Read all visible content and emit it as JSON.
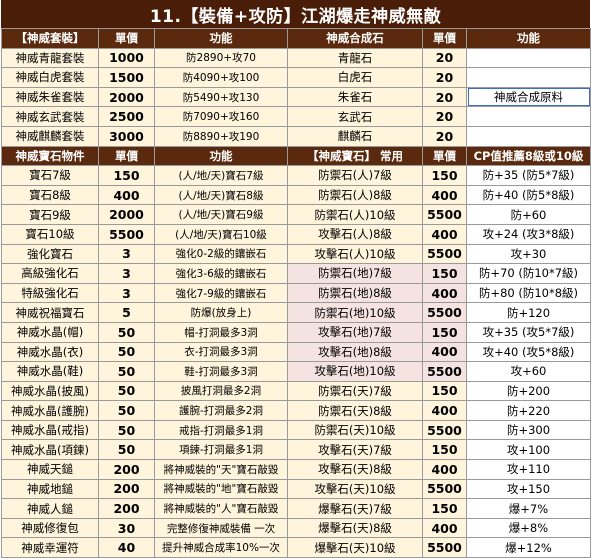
{
  "title": "11.【裝備+攻防】江湖爆走神威無敵",
  "top_header": [
    "【神威套裝】",
    "單價",
    "功能",
    "神威合成石",
    "單價",
    "功能"
  ],
  "top_rows": [
    [
      "神威青龍套裝",
      "1000",
      "防2890+攻70",
      "青龍石",
      "20",
      ""
    ],
    [
      "神威白虎套裝",
      "1500",
      "防4090+攻100",
      "白虎石",
      "20",
      ""
    ],
    [
      "神威朱雀套裝",
      "2000",
      "防5490+攻130",
      "朱雀石",
      "20",
      "神威合成原料"
    ],
    [
      "神威玄武套裝",
      "2500",
      "防7090+攻160",
      "玄武石",
      "20",
      ""
    ],
    [
      "神威麒麟套裝",
      "3000",
      "防8890+攻190",
      "麒麟石",
      "20",
      ""
    ]
  ],
  "mid_header": [
    "神威寶石物件",
    "單價",
    "功能",
    "【神威寶石】 常用",
    "單價",
    "CP值推薦8級或10級"
  ],
  "main_rows": [
    [
      "寶石7級",
      "150",
      "(人/地/天)寶石7級",
      "防禦石(人)7級",
      "150",
      "防+35 (防5*7級)"
    ],
    [
      "寶石8級",
      "400",
      "(人/地/天)寶石8級",
      "防禦石(人)8級",
      "400",
      "防+40 (防5*8級)"
    ],
    [
      "寶石9級",
      "2000",
      "(人/地/天)寶石9級",
      "防禦石(人)10級",
      "5500",
      "防+60"
    ],
    [
      "寶石10級",
      "5500",
      "(人/地/天)寶石10級",
      "攻擊石(人)8級",
      "400",
      "攻+24 (攻3*8級)"
    ],
    [
      "強化寶石",
      "3",
      "強化0-2級的鑲嵌石",
      "攻擊石(人)10級",
      "5500",
      "攻+30"
    ],
    [
      "高級強化石",
      "3",
      "強化3-6級的鑲嵌石",
      "防禦石(地)7級",
      "150",
      "防+70 (防10*7級)"
    ],
    [
      "特級強化石",
      "3",
      "強化7-9級的鑲嵌石",
      "防禦石(地)8級",
      "400",
      "防+80 (防10*8級)"
    ],
    [
      "神威祝福寶石",
      "5",
      "防爆(放身上)",
      "防禦石(地)10級",
      "5500",
      "防+120"
    ],
    [
      "神威水晶(帽)",
      "50",
      "帽-打洞最多3洞",
      "攻擊石(地)7級",
      "150",
      "攻+35 (攻5*7級)"
    ],
    [
      "神威水晶(衣)",
      "50",
      "衣-打洞最多3洞",
      "攻擊石(地)8級",
      "400",
      "攻+40 (攻5*8級)"
    ],
    [
      "神威水晶(鞋)",
      "50",
      "鞋-打洞最多3洞",
      "攻擊石(地)10級",
      "5500",
      "攻+60"
    ],
    [
      "神威水晶(披風)",
      "50",
      "披風打洞最多2洞",
      "防禦石(天)7級",
      "150",
      "防+200"
    ],
    [
      "神威水晶(護腕)",
      "50",
      "護腕-打洞最多2洞",
      "防禦石(天)8級",
      "400",
      "防+220"
    ],
    [
      "神威水晶(戒指)",
      "50",
      "戒指-打洞最多1洞",
      "防禦石(天)10級",
      "5500",
      "防+300"
    ],
    [
      "神威水晶(項鍊)",
      "50",
      "項鍊-打洞最多1洞",
      "攻擊石(天)7級",
      "150",
      "攻+100"
    ],
    [
      "神威天鎚",
      "200",
      "將神威裝的\"天\"寶石敲毀",
      "攻擊石(天)8級",
      "400",
      "攻+110"
    ],
    [
      "神威地鎚",
      "200",
      "將神威裝的\"地\"寶石敲毀",
      "攻擊石(天)10級",
      "5500",
      "攻+150"
    ],
    [
      "神威人鎚",
      "200",
      "將神威裝的\"人\"寶石敲毀",
      "爆擊石(天)7級",
      "150",
      "爆+7%"
    ],
    [
      "神威修復包",
      "30",
      "完整修復神威裝備 一次",
      "爆擊石(天)8級",
      "400",
      "爆+8%"
    ],
    [
      "神威幸運符",
      "40",
      "提升神威合成率10%一次",
      "爆擊石(天)10級",
      "5500",
      "爆+12%"
    ]
  ],
  "colors": {
    "header_bg": "#5b2a0e",
    "title_bg": "#4a1d08",
    "cream": "#fff4dc",
    "pink": "#f4e3e0"
  }
}
